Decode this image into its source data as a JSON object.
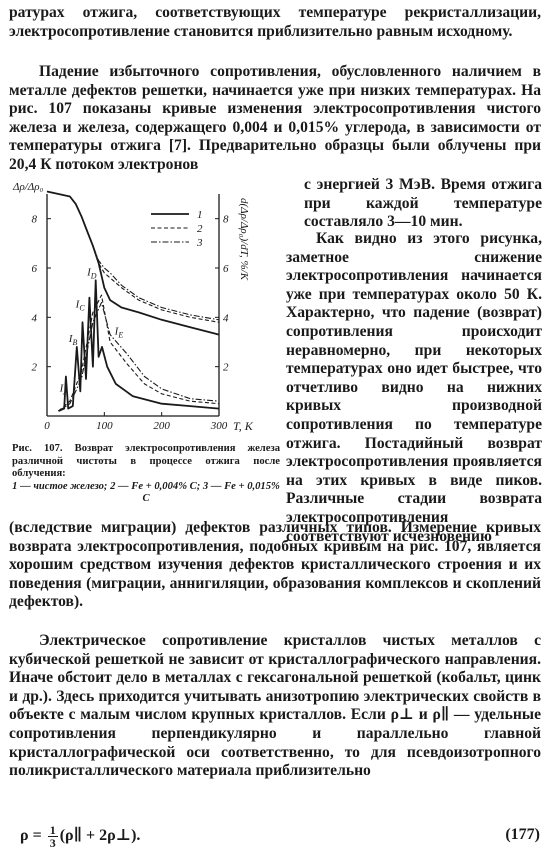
{
  "text": {
    "p0": "ратурах отжига, соответствующих температуре рекристаллизации, электросопротивление становится приблизительно равным исходному.",
    "p1_top": "Падение избыточного сопротивления, обусловленного наличием в металле дефектов решетки, начинается уже при низких температурах. На рис. 107 показаны кривые изменения электросопротивления чистого железа и железа, содержащего 0,004 и 0,015% углерода, в зависимости от температуры отжига [7]. Предварительно образцы были облучены при 20,4 К потоком электронов",
    "p1_right": "с энергией 3 МэВ. Время отжига при каждой температуре составляло 3—10 мин.",
    "p2_right": "Как видно из этого рисунка, заметное снижение электросопротивления начинается уже при температурах около 50 К. Характерно, что падение (возврат) сопротивления происходит неравномерно, при некоторых температурах оно идет быстрее, что отчетливо видно на нижних кривых производной сопротивления по температуре отжига. Постадийный возврат электросопротивления проявляется на этих кривых в виде пиков. Различные стадии возврата электросопротивления соответствуют исчезновению",
    "p2_cont": "(вследствие миграции) дефектов различных типов. Измерение кривых возврата электросопротивления, подобных кривым на рис. 107, является хорошим средством изучения дефектов кристаллического строения и их поведения (миграции, аннигиляции, образования комплексов и скоплений дефектов).",
    "p3": "Электрическое сопротивление кристаллов чистых металлов с кубической решеткой не зависит от кристаллографического направления. Иначе обстоит дело в металлах с гексагональной решеткой (кобальт, цинк и др.). Здесь приходится учитывать анизотропию электрических свойств в объекте с малым числом крупных кристаллов. Если ρ⊥ и ρ∥ — удельные сопротивления перпендикулярно и параллельно главной кристаллографической оси соответственно, то для псевдоизотропного поликристаллического материала приблизительно"
  },
  "formula": {
    "lhs": "ρ = ",
    "frac_num": "1",
    "frac_den": "3",
    "rhs": "(ρ∥ + 2ρ⊥).",
    "number": "(177)"
  },
  "caption": {
    "head": "Рис. 107. Возврат электросопротивления железа различной чистоты в процессе отжига после облучения:",
    "legend": "1 — чистое железо; 2 — Fe + 0,004% С; 3 — Fe + 0,015% С"
  },
  "chart_data": {
    "type": "line",
    "ylabel_left": "Δρ/Δρ₀",
    "ylabel_right": "d(Δρ/Δρ₀)/dT, %/K",
    "xlabel": "T, K",
    "x_ticks": [
      "0",
      "100",
      "200",
      "300"
    ],
    "y_ticks_left": [
      "2",
      "4",
      "6",
      "8"
    ],
    "y_ticks_right": [
      "2",
      "4",
      "6",
      "8"
    ],
    "xlim": [
      0,
      300
    ],
    "ylim": [
      0,
      9
    ],
    "legend_placement": "top-right",
    "legend": [
      "1",
      "2",
      "3"
    ],
    "peak_labels": [
      "I_A",
      "I_B",
      "I_C",
      "I_D",
      "I_E"
    ],
    "series": [
      {
        "name": "1",
        "style": "solid",
        "x": [
          0,
          20,
          40,
          50,
          60,
          70,
          80,
          90,
          100,
          110,
          130,
          160,
          200,
          250,
          300
        ],
        "y": [
          9.1,
          9.0,
          8.9,
          8.6,
          8.1,
          7.5,
          6.9,
          6.2,
          5.2,
          4.7,
          4.4,
          4.2,
          3.9,
          3.6,
          3.3
        ]
      },
      {
        "name": "2",
        "style": "dashed",
        "x": [
          0,
          20,
          40,
          50,
          60,
          70,
          80,
          90,
          100,
          110,
          130,
          160,
          200,
          250,
          300
        ],
        "y": [
          9.1,
          9.0,
          8.9,
          8.6,
          8.1,
          7.5,
          6.9,
          6.2,
          5.8,
          5.6,
          5.2,
          4.7,
          4.3,
          4.0,
          3.8
        ]
      },
      {
        "name": "3",
        "style": "dash-dot",
        "x": [
          0,
          20,
          40,
          50,
          60,
          70,
          80,
          90,
          100,
          110,
          130,
          160,
          200,
          250,
          300
        ],
        "y": [
          9.1,
          9.0,
          8.9,
          8.6,
          8.1,
          7.5,
          6.9,
          6.3,
          6.0,
          5.8,
          5.3,
          4.8,
          4.4,
          4.1,
          3.9
        ]
      },
      {
        "name": "1-derivative",
        "style": "solid",
        "x": [
          20,
          30,
          33,
          37,
          45,
          52,
          58,
          62,
          68,
          74,
          80,
          85,
          90,
          96,
          105,
          120,
          150,
          200,
          250,
          300
        ],
        "y": [
          0.2,
          0.3,
          1.6,
          0.3,
          0.4,
          2.8,
          1.0,
          3.8,
          1.5,
          4.8,
          2.0,
          5.5,
          2.4,
          2.8,
          2.0,
          1.3,
          0.8,
          0.5,
          0.4,
          0.3
        ]
      },
      {
        "name": "2-derivative",
        "style": "dashed",
        "x": [
          20,
          40,
          60,
          80,
          95,
          110,
          140,
          170,
          200,
          250,
          300
        ],
        "y": [
          0.2,
          0.6,
          1.8,
          4.2,
          4.9,
          3.0,
          2.1,
          1.3,
          0.9,
          0.6,
          0.5
        ]
      },
      {
        "name": "3-derivative",
        "style": "dash-dot",
        "x": [
          20,
          40,
          60,
          80,
          95,
          110,
          140,
          170,
          200,
          250,
          300
        ],
        "y": [
          0.2,
          0.5,
          1.5,
          3.8,
          4.6,
          3.3,
          2.5,
          1.6,
          1.1,
          0.7,
          0.6
        ]
      }
    ]
  },
  "colors": {
    "ink": "#1a1a1a",
    "paper": "#ffffff"
  }
}
